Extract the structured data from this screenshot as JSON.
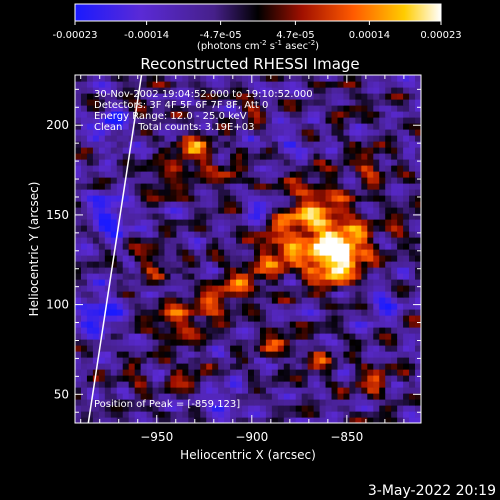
{
  "chart_data": {
    "type": "heatmap",
    "title": "Reconstructed RHESSI Image",
    "xlabel": "Heliocentric X (arcsec)",
    "ylabel": "Heliocentric Y (arcsec)",
    "xlim": [
      -993,
      -811
    ],
    "ylim": [
      34,
      228
    ],
    "x_ticks": [
      -950,
      -900,
      -850
    ],
    "y_ticks": [
      50,
      100,
      150,
      200
    ],
    "colorbar": {
      "ticks": [
        "-0.00023",
        "-0.00014",
        "-4.7e-05",
        "4.7e-05",
        "0.00014",
        "0.00023"
      ],
      "tick_values": [
        -0.00023,
        -0.00014,
        -4.7e-05,
        4.7e-05,
        0.00014,
        0.00023
      ],
      "range": [
        -0.00023,
        0.00023
      ],
      "units_parts": [
        "(photons cm",
        "-2",
        " s",
        "-1",
        " asec",
        "-2",
        ")"
      ],
      "colormap": "blue-purple-red-orange-yellow-white"
    },
    "info_lines": [
      "30-Nov-2002 19:04:52.000 to 19:10:52.000",
      "Detectors: 3F 4F 5F 6F 7F 8F, Att 0",
      "Energy Range: 12.0 - 25.0 keV",
      "Clean     Total counts: 3.19E+03"
    ],
    "peak_label": "Position of Peak = [-859,123]",
    "peak": [
      -859,
      123
    ],
    "limb_line": [
      [
        -986,
        34
      ],
      [
        -958,
        228
      ]
    ],
    "blobs": [
      {
        "x": -868,
        "y": 148,
        "r": 20,
        "v": 0.00021
      },
      {
        "x": -859,
        "y": 123,
        "r": 13,
        "v": 0.00023
      },
      {
        "x": -848,
        "y": 132,
        "r": 12,
        "v": 0.00018
      },
      {
        "x": -887,
        "y": 128,
        "r": 11,
        "v": 0.00015
      },
      {
        "x": -905,
        "y": 112,
        "r": 11,
        "v": 0.00014
      },
      {
        "x": -922,
        "y": 100,
        "r": 10,
        "v": 0.00013
      },
      {
        "x": -940,
        "y": 90,
        "r": 11,
        "v": 0.00015
      },
      {
        "x": -930,
        "y": 185,
        "r": 10,
        "v": 0.00017
      },
      {
        "x": -944,
        "y": 170,
        "r": 9,
        "v": 0.00012
      },
      {
        "x": -912,
        "y": 172,
        "r": 8,
        "v": 0.0001
      },
      {
        "x": -838,
        "y": 178,
        "r": 9,
        "v": 0.00012
      },
      {
        "x": -822,
        "y": 145,
        "r": 8,
        "v": 0.0001
      },
      {
        "x": -953,
        "y": 125,
        "r": 9,
        "v": 0.00011
      },
      {
        "x": -887,
        "y": 80,
        "r": 9,
        "v": 0.00012
      },
      {
        "x": -866,
        "y": 68,
        "r": 8,
        "v": 0.0001
      },
      {
        "x": -836,
        "y": 58,
        "r": 9,
        "v": 0.00012
      },
      {
        "x": -935,
        "y": 60,
        "r": 8,
        "v": 0.00011
      },
      {
        "x": -962,
        "y": 58,
        "r": 7,
        "v": 9e-05
      },
      {
        "x": -958,
        "y": 212,
        "r": 7,
        "v": 8e-05
      },
      {
        "x": -900,
        "y": 210,
        "r": 7,
        "v": 9e-05
      },
      {
        "x": -850,
        "y": 212,
        "r": 7,
        "v": 8e-05
      },
      {
        "x": -895,
        "y": 155,
        "r": 7,
        "v": -0.00014
      },
      {
        "x": -975,
        "y": 150,
        "r": 12,
        "v": -0.00016
      },
      {
        "x": -980,
        "y": 95,
        "r": 12,
        "v": -0.00017
      },
      {
        "x": -975,
        "y": 200,
        "r": 10,
        "v": -0.00013
      },
      {
        "x": -915,
        "y": 45,
        "r": 9,
        "v": -0.00012
      },
      {
        "x": -830,
        "y": 100,
        "r": 9,
        "v": -0.00011
      },
      {
        "x": -880,
        "y": 190,
        "r": 8,
        "v": -0.0001
      }
    ]
  },
  "footer": {
    "date": "3-May-2022 20:19"
  },
  "colors": {
    "background": "#000000",
    "text": "#ffffff",
    "axes": "#ffffff"
  }
}
